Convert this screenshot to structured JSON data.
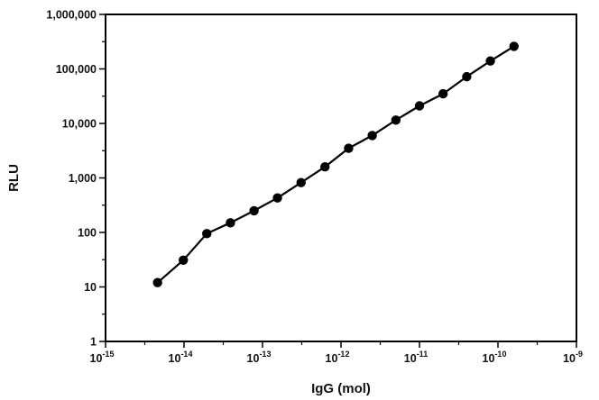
{
  "chart_data": {
    "type": "line",
    "title": "",
    "xlabel": "IgG (mol)",
    "ylabel": "RLU",
    "x_scale": "log",
    "y_scale": "log",
    "xlim": [
      1e-15,
      1e-09
    ],
    "ylim": [
      1,
      1000000
    ],
    "grid": false,
    "legend": "none",
    "x_ticks": [
      {
        "base": "10",
        "exp": "-15"
      },
      {
        "base": "10",
        "exp": "-14"
      },
      {
        "base": "10",
        "exp": "-13"
      },
      {
        "base": "10",
        "exp": "-12"
      },
      {
        "base": "10",
        "exp": "-11"
      },
      {
        "base": "10",
        "exp": "-10"
      },
      {
        "base": "10",
        "exp": "-9"
      }
    ],
    "y_ticks": [
      "1",
      "10",
      "100",
      "1,000",
      "10,000",
      "100,000",
      "1,000,000"
    ],
    "series": [
      {
        "color": "#000000",
        "marker": "filled-circle",
        "x": [
          4.6e-15,
          9.8e-15,
          1.95e-14,
          3.9e-14,
          7.8e-14,
          1.55e-13,
          3.1e-13,
          6.25e-13,
          1.25e-12,
          2.5e-12,
          5e-12,
          1e-11,
          2e-11,
          4e-11,
          8e-11,
          1.6e-10
        ],
        "y": [
          12,
          31,
          95,
          150,
          250,
          430,
          820,
          1600,
          3500,
          6000,
          11500,
          21000,
          35000,
          72000,
          140000,
          260000
        ]
      }
    ]
  }
}
